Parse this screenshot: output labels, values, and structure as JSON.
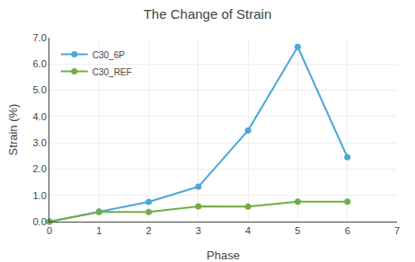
{
  "chart_data": {
    "type": "line",
    "title": "The Change of Strain",
    "x_label": "Phase",
    "y_label": "Strain (%)",
    "x": [
      0,
      1,
      2,
      3,
      4,
      5,
      6
    ],
    "series": [
      {
        "name": "C30_6P",
        "color": "#4da6d8",
        "marker": "circle",
        "values": [
          0.0,
          0.38,
          0.75,
          1.33,
          3.47,
          6.65,
          2.45
        ]
      },
      {
        "name": "C30_REF",
        "color": "#70ad47",
        "marker": "circle",
        "values": [
          0.0,
          0.37,
          0.37,
          0.58,
          0.57,
          0.76,
          0.76
        ]
      }
    ],
    "xlim": [
      0,
      7
    ],
    "xticks": [
      0,
      1,
      2,
      3,
      4,
      5,
      6,
      7
    ],
    "ylim": [
      0.0,
      7.0
    ],
    "yticks": [
      {
        "value": 0,
        "label": "0.0"
      },
      {
        "value": 1,
        "label": "1.0"
      },
      {
        "value": 2,
        "label": "2.0"
      },
      {
        "value": 3,
        "label": "3.0"
      },
      {
        "value": 4,
        "label": "4.0"
      },
      {
        "value": 5,
        "label": "5.0"
      },
      {
        "value": 6,
        "label": "6.0"
      },
      {
        "value": 7,
        "label": "7.0"
      }
    ],
    "grid": true,
    "legend": "upper left"
  }
}
